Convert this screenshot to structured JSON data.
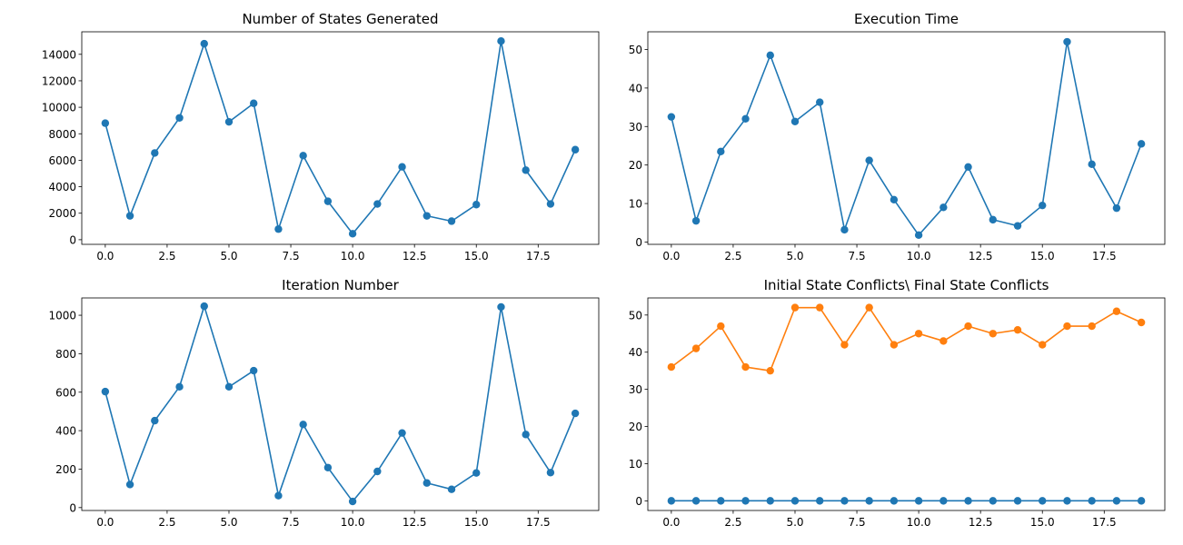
{
  "chart_data": [
    {
      "type": "line",
      "title": "Number of States Generated",
      "xlabel": "",
      "ylabel": "",
      "xlim": [
        -0.95,
        19.95
      ],
      "ylim": [
        -350,
        15700
      ],
      "xticks": [
        0,
        2.5,
        5,
        7.5,
        10,
        12.5,
        15,
        17.5
      ],
      "xtick_labels": [
        "0.0",
        "2.5",
        "5.0",
        "7.5",
        "10.0",
        "12.5",
        "15.0",
        "17.5"
      ],
      "yticks": [
        0,
        2000,
        4000,
        6000,
        8000,
        10000,
        12000,
        14000
      ],
      "ytick_labels": [
        "0",
        "2000",
        "4000",
        "6000",
        "8000",
        "10000",
        "12000",
        "14000"
      ],
      "grid": false,
      "x": [
        0,
        1,
        2,
        3,
        4,
        5,
        6,
        7,
        8,
        9,
        10,
        11,
        12,
        13,
        14,
        15,
        16,
        17,
        18,
        19
      ],
      "series": [
        {
          "color": "#1f77b4",
          "values": [
            8800,
            1800,
            6550,
            9200,
            14800,
            8900,
            10300,
            800,
            6350,
            2900,
            450,
            2700,
            5500,
            1800,
            1400,
            2650,
            15000,
            5250,
            2700,
            6800
          ]
        }
      ]
    },
    {
      "type": "line",
      "title": "Execution Time",
      "xlabel": "",
      "ylabel": "",
      "xlim": [
        -0.95,
        19.95
      ],
      "ylim": [
        -0.6,
        54.6
      ],
      "xticks": [
        0,
        2.5,
        5,
        7.5,
        10,
        12.5,
        15,
        17.5
      ],
      "xtick_labels": [
        "0.0",
        "2.5",
        "5.0",
        "7.5",
        "10.0",
        "12.5",
        "15.0",
        "17.5"
      ],
      "yticks": [
        0,
        10,
        20,
        30,
        40,
        50
      ],
      "ytick_labels": [
        "0",
        "10",
        "20",
        "30",
        "40",
        "50"
      ],
      "grid": false,
      "x": [
        0,
        1,
        2,
        3,
        4,
        5,
        6,
        7,
        8,
        9,
        10,
        11,
        12,
        13,
        14,
        15,
        16,
        17,
        18,
        19
      ],
      "series": [
        {
          "color": "#1f77b4",
          "values": [
            32.5,
            5.5,
            23.5,
            32,
            48.5,
            31.3,
            36.3,
            3.2,
            21.2,
            11,
            1.8,
            9,
            19.5,
            5.8,
            4.2,
            9.5,
            52,
            20.2,
            8.8,
            25.5
          ]
        }
      ]
    },
    {
      "type": "line",
      "title": "Iteration Number",
      "xlabel": "",
      "ylabel": "",
      "xlim": [
        -0.95,
        19.95
      ],
      "ylim": [
        -15,
        1090
      ],
      "xticks": [
        0,
        2.5,
        5,
        7.5,
        10,
        12.5,
        15,
        17.5
      ],
      "xtick_labels": [
        "0.0",
        "2.5",
        "5.0",
        "7.5",
        "10.0",
        "12.5",
        "15.0",
        "17.5"
      ],
      "yticks": [
        0,
        200,
        400,
        600,
        800,
        1000
      ],
      "ytick_labels": [
        "0",
        "200",
        "400",
        "600",
        "800",
        "1000"
      ],
      "grid": false,
      "x": [
        0,
        1,
        2,
        3,
        4,
        5,
        6,
        7,
        8,
        9,
        10,
        11,
        12,
        13,
        14,
        15,
        16,
        17,
        18,
        19
      ],
      "series": [
        {
          "color": "#1f77b4",
          "values": [
            603,
            120,
            452,
            628,
            1047,
            628,
            712,
            62,
            432,
            208,
            32,
            188,
            388,
            128,
            95,
            180,
            1043,
            380,
            182,
            490
          ]
        }
      ]
    },
    {
      "type": "line",
      "title": "Initial State Conflicts\\ Final State Conflicts",
      "xlabel": "",
      "ylabel": "",
      "xlim": [
        -0.95,
        19.95
      ],
      "ylim": [
        -2.6,
        54.6
      ],
      "xticks": [
        0,
        2.5,
        5,
        7.5,
        10,
        12.5,
        15,
        17.5
      ],
      "xtick_labels": [
        "0.0",
        "2.5",
        "5.0",
        "7.5",
        "10.0",
        "12.5",
        "15.0",
        "17.5"
      ],
      "yticks": [
        0,
        10,
        20,
        30,
        40,
        50
      ],
      "ytick_labels": [
        "0",
        "10",
        "20",
        "30",
        "40",
        "50"
      ],
      "grid": false,
      "x": [
        0,
        1,
        2,
        3,
        4,
        5,
        6,
        7,
        8,
        9,
        10,
        11,
        12,
        13,
        14,
        15,
        16,
        17,
        18,
        19
      ],
      "series": [
        {
          "color": "#1f77b4",
          "values": [
            0,
            0,
            0,
            0,
            0,
            0,
            0,
            0,
            0,
            0,
            0,
            0,
            0,
            0,
            0,
            0,
            0,
            0,
            0,
            0
          ]
        },
        {
          "color": "#ff7f0e",
          "values": [
            36,
            41,
            47,
            36,
            35,
            52,
            52,
            42,
            52,
            42,
            45,
            43,
            47,
            45,
            46,
            42,
            47,
            47,
            51,
            48
          ]
        }
      ]
    }
  ]
}
